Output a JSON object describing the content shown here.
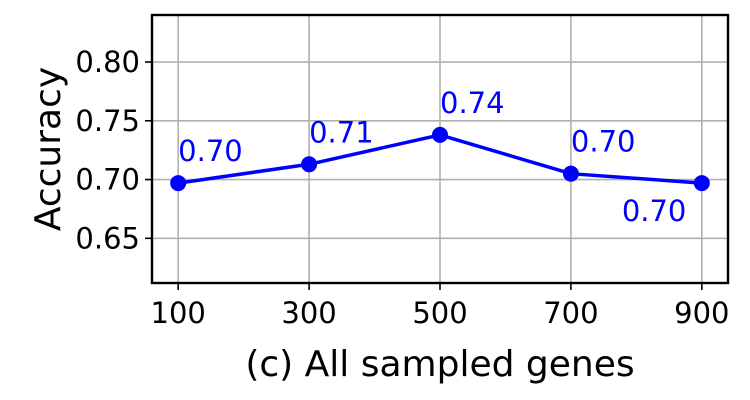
{
  "chart_data": {
    "type": "line",
    "x": [
      100,
      300,
      500,
      700,
      900
    ],
    "series": [
      {
        "values": [
          0.697,
          0.713,
          0.738,
          0.705,
          0.697
        ],
        "data_labels": [
          "0.70",
          "0.71",
          "0.74",
          "0.70",
          "0.70"
        ],
        "color": "#0000ff",
        "marker": "circle"
      }
    ],
    "x_ticks": [
      100,
      300,
      500,
      700,
      900
    ],
    "x_tick_labels": [
      "100",
      "300",
      "500",
      "700",
      "900"
    ],
    "y_ticks": [
      0.65,
      0.7,
      0.75,
      0.8
    ],
    "y_tick_labels": [
      "0.65",
      "0.70",
      "0.75",
      "0.80"
    ],
    "xlim": [
      60,
      940
    ],
    "ylim": [
      0.612,
      0.84
    ],
    "xlabel": "(c) All sampled genes",
    "ylabel": "Accuracy",
    "grid": true,
    "legend": "none"
  }
}
